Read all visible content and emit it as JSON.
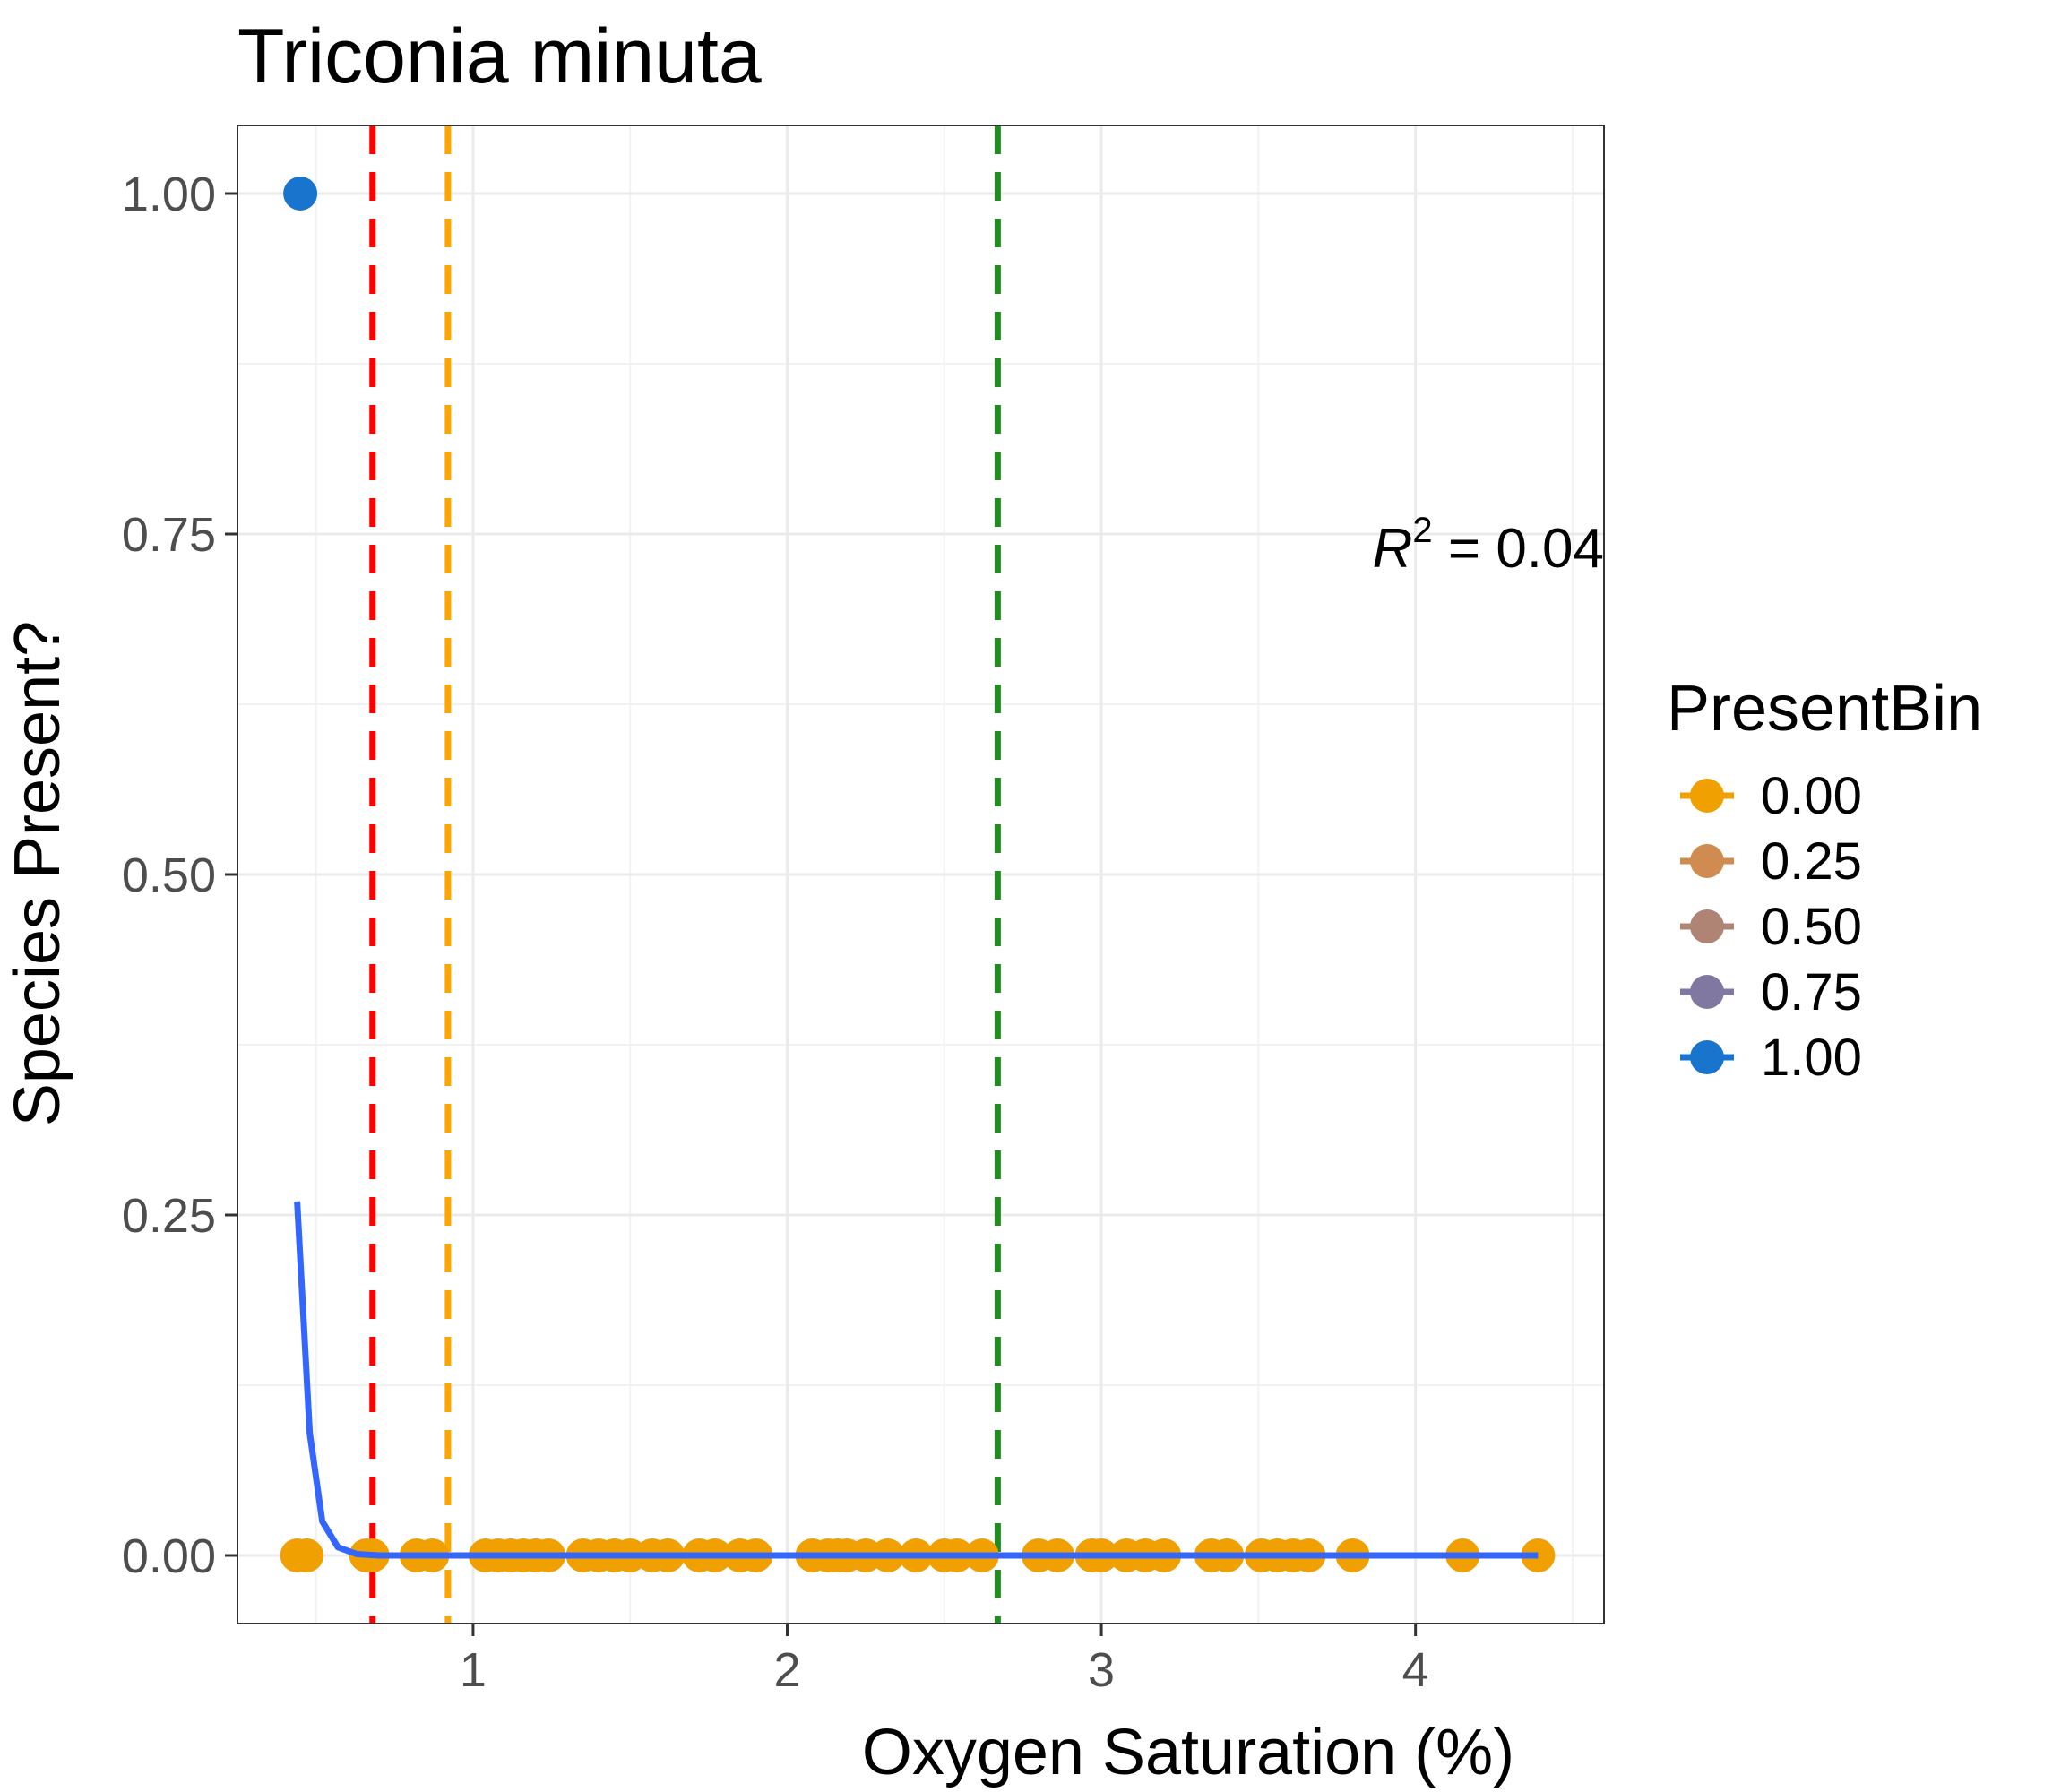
{
  "chart_data": {
    "type": "scatter",
    "title": "Triconia minuta",
    "xlabel": "Oxygen Saturation (%)",
    "ylabel": "Species Present?",
    "xlim": [
      0.25,
      4.6
    ],
    "ylim": [
      -0.05,
      1.05
    ],
    "x_ticks": [
      1,
      2,
      3,
      4
    ],
    "x_tick_labels": [
      "1",
      "2",
      "3",
      "4"
    ],
    "y_ticks": [
      0,
      0.25,
      0.5,
      0.75,
      1.0
    ],
    "y_tick_labels": [
      "0.00",
      "0.25",
      "0.50",
      "0.75",
      "1.00"
    ],
    "grid": true,
    "legend": {
      "title": "PresentBin",
      "position": "right",
      "entries": [
        {
          "label": "0.00",
          "color": "#f0a000"
        },
        {
          "label": "0.25",
          "color": "#d08c50"
        },
        {
          "label": "0.50",
          "color": "#b08474"
        },
        {
          "label": "0.75",
          "color": "#8078a0"
        },
        {
          "label": "1.00",
          "color": "#1874cd"
        }
      ]
    },
    "annotation": {
      "text_base": "R",
      "text_sup": "2",
      "text_rest": " = 0.04",
      "x": 4.6,
      "y": 0.74
    },
    "points_absent": {
      "color": "#f0a000",
      "y": 0,
      "x": [
        0.44,
        0.47,
        0.66,
        0.68,
        0.82,
        0.87,
        1.04,
        1.08,
        1.12,
        1.16,
        1.2,
        1.24,
        1.35,
        1.4,
        1.45,
        1.5,
        1.57,
        1.62,
        1.72,
        1.77,
        1.85,
        1.9,
        2.08,
        2.13,
        2.16,
        2.19,
        2.25,
        2.32,
        2.41,
        2.5,
        2.54,
        2.62,
        2.8,
        2.86,
        2.97,
        3.0,
        3.08,
        3.14,
        3.2,
        3.35,
        3.4,
        3.51,
        3.56,
        3.61,
        3.66,
        3.8,
        4.15,
        4.39
      ]
    },
    "points_present": {
      "color": "#1874cd",
      "y": 1,
      "x": [
        0.45
      ]
    },
    "fit_line": {
      "color": "#3366ff",
      "x": [
        0.44,
        0.48,
        0.52,
        0.57,
        0.63,
        0.7,
        0.8,
        1.0,
        1.5,
        2.0,
        3.0,
        4.0,
        4.39
      ],
      "y": [
        0.26,
        0.09,
        0.025,
        0.006,
        0.001,
        0.0,
        0.0,
        0.0,
        0.0,
        0.0,
        0.0,
        0.0,
        0.0
      ]
    },
    "vlines": [
      {
        "x": 0.68,
        "color": "#ff0000",
        "style": "dashed"
      },
      {
        "x": 0.92,
        "color": "#ffa500",
        "style": "dashed"
      },
      {
        "x": 2.67,
        "color": "#228b22",
        "style": "dashed"
      }
    ]
  }
}
